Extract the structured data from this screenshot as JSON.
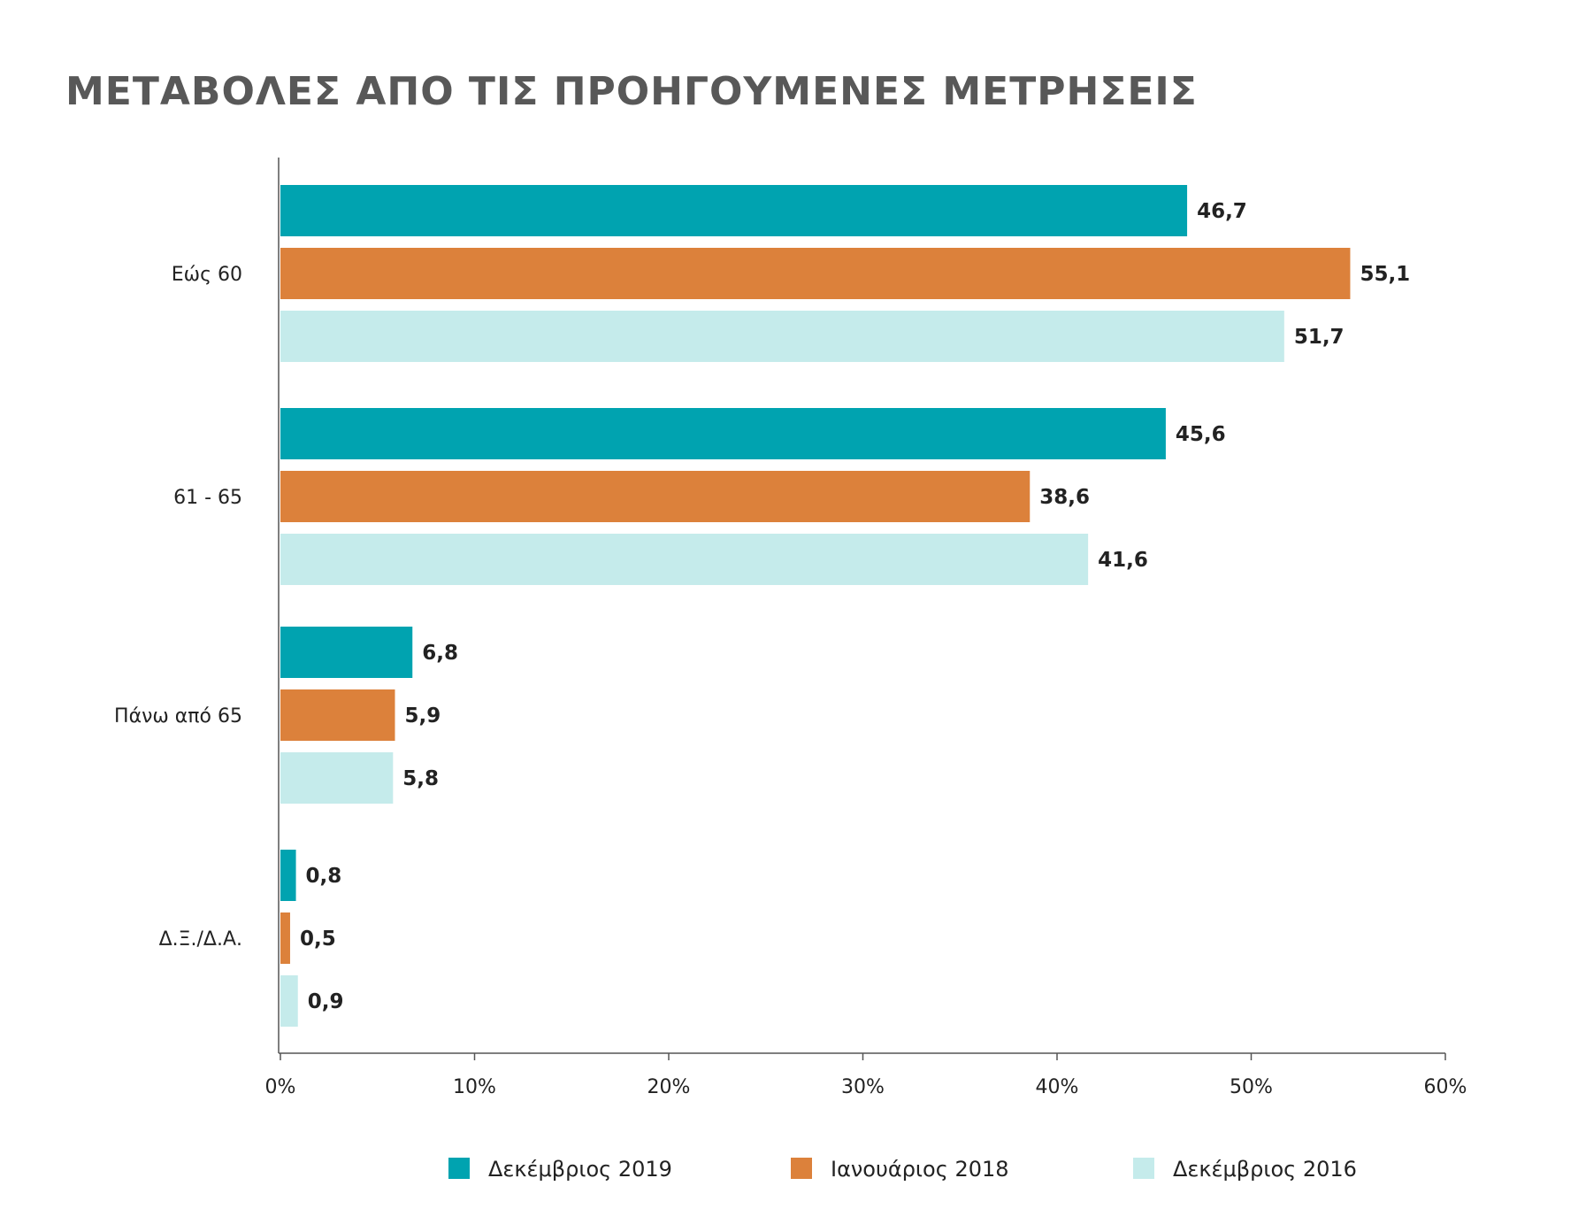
{
  "title": "ΜΕΤΑΒΟΛΕΣ ΑΠΟ ΤΙΣ ΠΡΟΗΓΟΥΜΕΝΕΣ ΜΕΤΡΗΣΕΙΣ",
  "chart_data": {
    "type": "bar",
    "orientation": "horizontal",
    "title": "ΜΕΤΑΒΟΛΕΣ ΑΠΟ ΤΙΣ ΠΡΟΗΓΟΥΜΕΝΕΣ ΜΕΤΡΗΣΕΙΣ",
    "categories": [
      "Εώς 60",
      "61 - 65",
      "Πάνω από 65",
      "Δ.Ξ./Δ.Α."
    ],
    "series": [
      {
        "name": "Δεκέμβριος 2019",
        "color": "#00a3b0",
        "values": [
          46.7,
          45.6,
          6.8,
          0.8
        ],
        "labels": [
          "46,7",
          "45,6",
          "6,8",
          "0,8"
        ]
      },
      {
        "name": "Ιανουάριος 2018",
        "color": "#dc813b",
        "values": [
          55.1,
          38.6,
          5.9,
          0.5
        ],
        "labels": [
          "55,1",
          "38,6",
          "5,9",
          "0,5"
        ]
      },
      {
        "name": "Δεκέμβριος 2016",
        "color": "#c5ebeb",
        "values": [
          51.7,
          41.6,
          5.8,
          0.9
        ],
        "labels": [
          "51,7",
          "41,6",
          "5,8",
          "0,9"
        ]
      }
    ],
    "xlim": [
      0,
      60
    ],
    "xticks": [
      "0%",
      "10%",
      "20%",
      "30%",
      "40%",
      "50%",
      "60%"
    ],
    "grid": false,
    "legend_position": "bottom"
  }
}
